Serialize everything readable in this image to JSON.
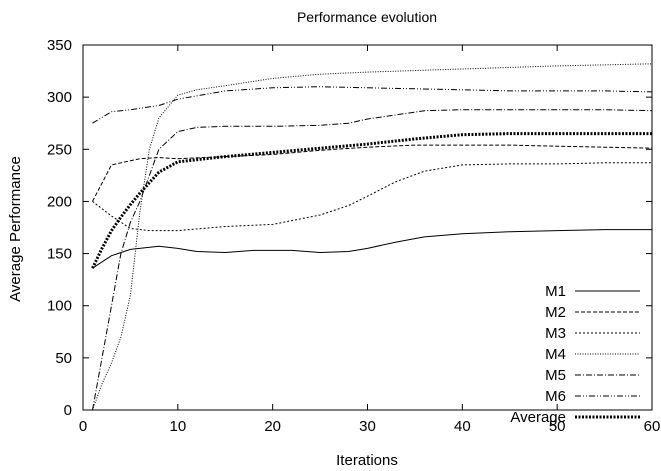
{
  "chart_data": {
    "type": "line",
    "title": "Performance evolution",
    "xlabel": "Iterations",
    "ylabel": "Average Performance",
    "xlim": [
      0,
      60
    ],
    "ylim": [
      0,
      350
    ],
    "xticks": [
      0,
      10,
      20,
      30,
      40,
      50,
      60
    ],
    "yticks": [
      0,
      50,
      100,
      150,
      200,
      250,
      300,
      350
    ],
    "grid": false,
    "legend_position": "bottom-right",
    "series": [
      {
        "name": "M1",
        "style": "solid",
        "x": [
          1,
          3,
          5,
          8,
          10,
          12,
          15,
          18,
          20,
          22,
          25,
          28,
          30,
          33,
          36,
          40,
          45,
          50,
          55,
          60
        ],
        "y": [
          136,
          148,
          154,
          157,
          155,
          152,
          151,
          153,
          153,
          153,
          151,
          152,
          155,
          161,
          166,
          169,
          171,
          172,
          173,
          173
        ]
      },
      {
        "name": "M2",
        "style": "dashed",
        "x": [
          1,
          3,
          6,
          8,
          10,
          15,
          20,
          25,
          30,
          35,
          40,
          45,
          50,
          55,
          60
        ],
        "y": [
          200,
          235,
          241,
          242,
          241,
          243,
          245,
          249,
          252,
          254,
          254,
          254,
          253,
          252,
          251
        ]
      },
      {
        "name": "M3",
        "style": "dotted",
        "x": [
          1,
          3,
          5,
          7,
          10,
          15,
          20,
          25,
          28,
          30,
          33,
          36,
          40,
          45,
          50,
          55,
          60
        ],
        "y": [
          200,
          186,
          174,
          172,
          172,
          176,
          178,
          187,
          196,
          205,
          219,
          229,
          235,
          236,
          236,
          237,
          237
        ]
      },
      {
        "name": "M4",
        "style": "fine-dotted",
        "x": [
          1,
          2,
          3,
          4,
          5,
          6,
          7,
          8,
          10,
          12,
          15,
          20,
          25,
          30,
          40,
          50,
          60
        ],
        "y": [
          0,
          25,
          45,
          70,
          110,
          190,
          250,
          280,
          302,
          307,
          311,
          318,
          322,
          324,
          327,
          330,
          332
        ]
      },
      {
        "name": "M5",
        "style": "dash-dot",
        "x": [
          1,
          2,
          3,
          4,
          5,
          6,
          7,
          8,
          10,
          12,
          15,
          20,
          25,
          28,
          30,
          33,
          36,
          40,
          45,
          50,
          55,
          60
        ],
        "y": [
          0,
          50,
          100,
          150,
          180,
          200,
          225,
          250,
          267,
          271,
          272,
          272,
          273,
          275,
          279,
          283,
          287,
          288,
          288,
          288,
          288,
          287
        ]
      },
      {
        "name": "M6",
        "style": "dash-dot-dot",
        "x": [
          1,
          3,
          5,
          8,
          10,
          15,
          20,
          25,
          30,
          35,
          40,
          45,
          50,
          55,
          60
        ],
        "y": [
          275,
          286,
          288,
          292,
          298,
          306,
          309,
          310,
          309,
          308,
          307,
          306,
          306,
          306,
          305
        ]
      },
      {
        "name": "Average",
        "style": "thick-dotted",
        "x": [
          1,
          2,
          3,
          4,
          5,
          6,
          8,
          10,
          15,
          20,
          25,
          30,
          35,
          40,
          45,
          50,
          55,
          60
        ],
        "y": [
          136,
          155,
          172,
          185,
          197,
          208,
          228,
          238,
          243,
          247,
          251,
          255,
          260,
          264,
          265,
          265,
          265,
          265
        ]
      }
    ]
  }
}
